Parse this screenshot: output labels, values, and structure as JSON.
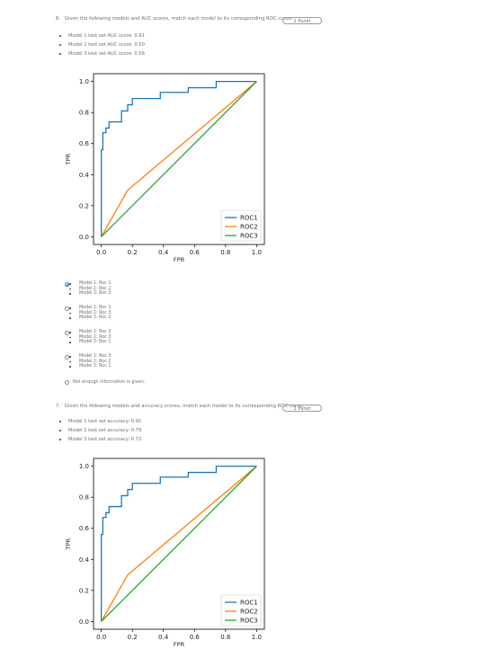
{
  "questions": [
    {
      "number_text": "6.",
      "prompt": "Given the following models and AUC scores, match each model to its corresponding ROC curve.",
      "points": "1 Punkt",
      "metrics": [
        "Model 1 test set AUC score: 0.91",
        "Model 2 test set AUC score: 0.50",
        "Model 3 test set AUC score: 0.56"
      ],
      "options": [
        {
          "selected": true,
          "lines": [
            "Model 1: Roc 1",
            "Model 2: Roc 2",
            "Model 3: Roc 3"
          ]
        },
        {
          "selected": false,
          "lines": [
            "Model 1: Roc 1",
            "Model 2: Roc 3",
            "Model 3: Roc 2"
          ]
        },
        {
          "selected": false,
          "lines": [
            "Model 1: Roc 2",
            "Model 2: Roc 3",
            "Model 3: Roc 1"
          ]
        },
        {
          "selected": false,
          "lines": [
            "Model 1: Roc 3",
            "Model 2: Roc 2",
            "Model 3: Roc 1"
          ]
        }
      ],
      "extra_option": "Not enough information is given."
    },
    {
      "number_text": "7.",
      "prompt": "Given the following models and accuracy scores, match each model to its corresponding ROC curve.",
      "points": "1 Punkt",
      "metrics": [
        "Model 1 test set accuracy: 0.91",
        "Model 2 test set accuracy: 0.79",
        "Model 3 test set accuracy: 0.72"
      ]
    }
  ],
  "chart_data": [
    {
      "type": "line",
      "xlabel": "FPR",
      "ylabel": "TPR",
      "xlim": [
        -0.05,
        1.05
      ],
      "ylim": [
        -0.05,
        1.05
      ],
      "xticks": [
        "0.0",
        "0.2",
        "0.4",
        "0.6",
        "0.8",
        "1.0"
      ],
      "yticks": [
        "0.0",
        "0.2",
        "0.4",
        "0.6",
        "0.8",
        "1.0"
      ],
      "legend_position": "lower-right",
      "series": [
        {
          "name": "ROC1",
          "color": "#1f77b4",
          "x": [
            0,
            0,
            0.01,
            0.01,
            0.03,
            0.03,
            0.05,
            0.05,
            0.13,
            0.13,
            0.17,
            0.17,
            0.2,
            0.2,
            0.38,
            0.38,
            0.56,
            0.56,
            0.74,
            0.74,
            1.0
          ],
          "y": [
            0,
            0.56,
            0.56,
            0.67,
            0.67,
            0.7,
            0.7,
            0.74,
            0.74,
            0.81,
            0.81,
            0.85,
            0.85,
            0.89,
            0.89,
            0.93,
            0.93,
            0.96,
            0.96,
            1.0,
            1.0
          ]
        },
        {
          "name": "ROC2",
          "color": "#ff7f0e",
          "x": [
            0,
            0.17,
            1.0
          ],
          "y": [
            0,
            0.3,
            1.0
          ]
        },
        {
          "name": "ROC3",
          "color": "#2ca02c",
          "x": [
            0,
            1.0
          ],
          "y": [
            0,
            1.0
          ]
        }
      ]
    },
    {
      "type": "line",
      "xlabel": "FPR",
      "ylabel": "TPR",
      "xlim": [
        -0.05,
        1.05
      ],
      "ylim": [
        -0.05,
        1.05
      ],
      "xticks": [
        "0.0",
        "0.2",
        "0.4",
        "0.6",
        "0.8",
        "1.0"
      ],
      "yticks": [
        "0.0",
        "0.2",
        "0.4",
        "0.6",
        "0.8",
        "1.0"
      ],
      "legend_position": "lower-right",
      "series": [
        {
          "name": "ROC1",
          "color": "#1f77b4",
          "x": [
            0,
            0,
            0.01,
            0.01,
            0.03,
            0.03,
            0.05,
            0.05,
            0.13,
            0.13,
            0.17,
            0.17,
            0.2,
            0.2,
            0.38,
            0.38,
            0.56,
            0.56,
            0.74,
            0.74,
            1.0
          ],
          "y": [
            0,
            0.56,
            0.56,
            0.67,
            0.67,
            0.7,
            0.7,
            0.74,
            0.74,
            0.81,
            0.81,
            0.85,
            0.85,
            0.89,
            0.89,
            0.93,
            0.93,
            0.96,
            0.96,
            1.0,
            1.0
          ]
        },
        {
          "name": "ROC2",
          "color": "#ff7f0e",
          "x": [
            0,
            0.17,
            1.0
          ],
          "y": [
            0,
            0.3,
            1.0
          ]
        },
        {
          "name": "ROC3",
          "color": "#2ca02c",
          "x": [
            0,
            1.0
          ],
          "y": [
            0,
            1.0
          ]
        }
      ]
    }
  ]
}
